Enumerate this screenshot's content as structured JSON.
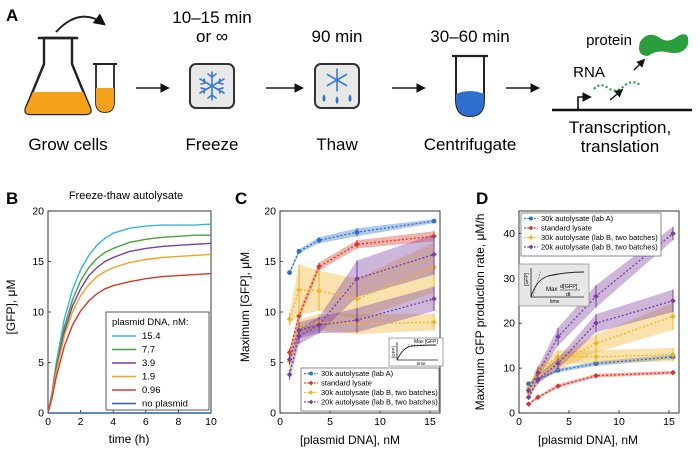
{
  "panels": {
    "a": "A",
    "b": "B",
    "c": "C",
    "d": "D"
  },
  "workflow": {
    "steps": [
      {
        "title_line1": "",
        "title_line2": "",
        "label": "Grow cells"
      },
      {
        "title_line1": "10–15 min",
        "title_line2": "or ∞",
        "label": "Freeze"
      },
      {
        "title_line1": "90 min",
        "title_line2": "",
        "label": "Thaw"
      },
      {
        "title_line1": "30–60 min",
        "title_line2": "",
        "label": "Centrifugate"
      }
    ],
    "output": {
      "protein": "protein",
      "rna": "RNA",
      "label_line1": "Transcription,",
      "label_line2": "translation"
    },
    "colors": {
      "culture": "#f5a21b",
      "pellet": "#2f6fce",
      "protein": "#2a9d3c",
      "box": "#e8e8e8"
    }
  },
  "panel_b": {
    "title": "Freeze-thaw autolysate",
    "xlabel": "time (h)",
    "ylabel_prefix": "[GFP], ",
    "ylabel_unit": "μM",
    "legend_title": "plasmid DNA, nM:"
  },
  "panel_c": {
    "xlabel": "[plasmid DNA], nM",
    "ylabel_prefix": "Maximum [GFP], ",
    "ylabel_unit": "μM",
    "inset_label": "Max [GFP]",
    "inset_x": "time",
    "inset_y": "[GFP]"
  },
  "panel_d": {
    "xlabel": "[plasmid DNA], nM",
    "ylabel": "Maximum GFP production rate, μM/h",
    "inset_label": "Max",
    "inset_frac_num": "d[GFP]",
    "inset_frac_den": "dt",
    "inset_x": "time",
    "inset_y": "[GFP]"
  },
  "chart_data": [
    {
      "id": "b",
      "type": "line",
      "title": "Freeze-thaw autolysate",
      "xlabel": "time (h)",
      "ylabel": "[GFP], μM",
      "xlim": [
        0,
        10
      ],
      "ylim": [
        0,
        20
      ],
      "xticks": [
        0,
        2,
        4,
        6,
        8,
        10
      ],
      "yticks": [
        0,
        5,
        10,
        15,
        20
      ],
      "x": [
        0,
        0.25,
        0.5,
        1,
        1.5,
        2,
        2.5,
        3,
        3.5,
        4,
        5,
        6,
        7,
        8,
        9,
        10
      ],
      "series": [
        {
          "name": "15.4",
          "color": "#36b3e6",
          "values": [
            0,
            2.1,
            4.9,
            9.3,
            12.2,
            14.2,
            15.6,
            16.6,
            17.3,
            17.8,
            18.3,
            18.5,
            18.6,
            18.6,
            18.6,
            18.7
          ]
        },
        {
          "name": "7.7",
          "color": "#4aa23c",
          "values": [
            0,
            1.9,
            4.5,
            8.5,
            11.2,
            13.1,
            14.4,
            15.3,
            15.9,
            16.3,
            16.9,
            17.2,
            17.4,
            17.5,
            17.6,
            17.6
          ]
        },
        {
          "name": "3.9",
          "color": "#7b3f9e",
          "values": [
            0,
            1.8,
            4.2,
            8.0,
            10.6,
            12.3,
            13.6,
            14.4,
            15.0,
            15.4,
            16.0,
            16.3,
            16.5,
            16.6,
            16.7,
            16.8
          ]
        },
        {
          "name": "1.9",
          "color": "#f0a524",
          "values": [
            0,
            1.7,
            4.0,
            7.6,
            10.0,
            11.6,
            12.7,
            13.5,
            14.0,
            14.4,
            14.9,
            15.2,
            15.4,
            15.5,
            15.6,
            15.7
          ]
        },
        {
          "name": "0.96",
          "color": "#d8382b",
          "values": [
            0,
            1.5,
            3.5,
            6.6,
            8.7,
            10.1,
            11.1,
            11.8,
            12.3,
            12.6,
            13.0,
            13.3,
            13.5,
            13.6,
            13.7,
            13.8
          ]
        },
        {
          "name": "no plasmid",
          "color": "#2f5fb8",
          "values": [
            0,
            0,
            0,
            0,
            0,
            0,
            0,
            0,
            0,
            0,
            0,
            0,
            0,
            0,
            0,
            0
          ]
        }
      ]
    },
    {
      "id": "c",
      "type": "line",
      "xlabel": "[plasmid DNA], nM",
      "ylabel": "Maximum [GFP], μM",
      "xlim": [
        0,
        16
      ],
      "ylim": [
        0,
        20
      ],
      "xticks": [
        0,
        5,
        10,
        15
      ],
      "yticks": [
        0,
        5,
        10,
        15,
        20
      ],
      "legend": "lower-right",
      "series": [
        {
          "name": "30k autolysate (lab A)",
          "color": "#2f6fce",
          "marker": "circle",
          "x": [
            0.96,
            1.9,
            3.9,
            7.7,
            15.4
          ],
          "values": [
            13.9,
            16.0,
            17.1,
            17.9,
            19.0
          ],
          "err": [
            0.2,
            0.2,
            0.3,
            0.4,
            0.2
          ]
        },
        {
          "name": "standard lysate",
          "color": "#d8382b",
          "marker": "diamond",
          "x": [
            0.96,
            1.9,
            3.9,
            7.7,
            15.4
          ],
          "values": [
            6.0,
            9.6,
            14.5,
            16.7,
            17.5
          ],
          "err": [
            0.4,
            0.5,
            0.4,
            0.4,
            0.5
          ]
        },
        {
          "name": "30k autolysate (lab B, two batches)",
          "color": "#f0b429",
          "marker": "diamond",
          "x": [
            0.96,
            1.9,
            3.9,
            7.7,
            15.4
          ],
          "values": [
            9.3,
            12.2,
            12.1,
            11.3,
            14.4
          ],
          "err": [
            0.6,
            2.5,
            2.0,
            2.0,
            2.5
          ]
        },
        {
          "name": "30k autolysate (lab B, two batches)",
          "color": "#f0b429",
          "marker": "diamond",
          "hide_legend": true,
          "x": [
            0.96,
            1.9,
            3.9,
            7.7,
            15.4
          ],
          "values": [
            5.1,
            8.5,
            9.0,
            8.8,
            9.0
          ],
          "err": [
            0.6,
            0.8,
            0.8,
            1.0,
            0.8
          ]
        },
        {
          "name": "20k autolysate (lab B, two batches)",
          "color": "#7b3f9e",
          "marker": "diamond",
          "x": [
            0.96,
            1.9,
            3.9,
            7.7,
            15.4
          ],
          "values": [
            5.3,
            8.2,
            8.7,
            13.3,
            15.7
          ],
          "err": [
            0.5,
            0.8,
            0.8,
            1.8,
            2.0
          ]
        },
        {
          "name": "20k autolysate (lab B, two batches)",
          "color": "#7b3f9e",
          "marker": "diamond",
          "hide_legend": true,
          "x": [
            0.96,
            1.9,
            3.9,
            7.7,
            15.4
          ],
          "values": [
            3.8,
            7.6,
            8.7,
            9.2,
            11.3
          ],
          "err": [
            0.5,
            0.8,
            0.8,
            1.2,
            1.2
          ]
        }
      ]
    },
    {
      "id": "d",
      "type": "line",
      "xlabel": "[plasmid DNA], nM",
      "ylabel": "Maximum GFP production rate, μM/h",
      "xlim": [
        0,
        16
      ],
      "ylim": [
        0,
        45
      ],
      "xticks": [
        0,
        5,
        10,
        15
      ],
      "yticks": [
        0,
        10,
        20,
        30,
        40
      ],
      "legend": "top-left",
      "series": [
        {
          "name": "30k autolysate (lab A)",
          "color": "#2f6fce",
          "marker": "circle",
          "x": [
            0.96,
            1.9,
            3.9,
            7.7,
            15.4
          ],
          "values": [
            6.5,
            7.5,
            9.5,
            11.0,
            12.5
          ],
          "err": [
            0.3,
            0.3,
            0.4,
            0.5,
            0.5
          ]
        },
        {
          "name": "standard lysate",
          "color": "#d8382b",
          "marker": "diamond",
          "x": [
            0.96,
            1.9,
            3.9,
            7.7,
            15.4
          ],
          "values": [
            2.0,
            3.5,
            6.0,
            8.3,
            9.0
          ],
          "err": [
            0.2,
            0.3,
            0.4,
            0.4,
            0.4
          ]
        },
        {
          "name": "30k autolysate (lab B, two batches)",
          "color": "#f0b429",
          "marker": "diamond",
          "x": [
            0.96,
            1.9,
            3.9,
            7.7,
            15.4
          ],
          "values": [
            5.5,
            9.5,
            12.5,
            12.5,
            13.0
          ],
          "err": [
            0.5,
            1.0,
            1.5,
            1.5,
            1.5
          ]
        },
        {
          "name": "30k autolysate (lab B, two batches)",
          "color": "#f0b429",
          "marker": "diamond",
          "hide_legend": true,
          "x": [
            0.96,
            1.9,
            3.9,
            7.7,
            15.4
          ],
          "values": [
            4.5,
            8.5,
            11.0,
            15.5,
            21.5
          ],
          "err": [
            0.5,
            1.0,
            1.5,
            2.0,
            3.0
          ]
        },
        {
          "name": "20k autolysate (lab B, two batches)",
          "color": "#7b3f9e",
          "marker": "diamond",
          "x": [
            0.96,
            1.9,
            3.9,
            7.7,
            15.4
          ],
          "values": [
            5.0,
            9.0,
            17.0,
            26.0,
            40.0
          ],
          "err": [
            0.6,
            1.2,
            2.0,
            2.5,
            1.5
          ]
        },
        {
          "name": "20k autolysate (lab B, two batches)",
          "color": "#7b3f9e",
          "marker": "diamond",
          "hide_legend": true,
          "x": [
            0.96,
            1.9,
            3.9,
            7.7,
            15.4
          ],
          "values": [
            3.5,
            7.5,
            11.0,
            20.0,
            25.0
          ],
          "err": [
            0.5,
            1.0,
            1.2,
            2.0,
            2.5
          ]
        }
      ]
    }
  ]
}
